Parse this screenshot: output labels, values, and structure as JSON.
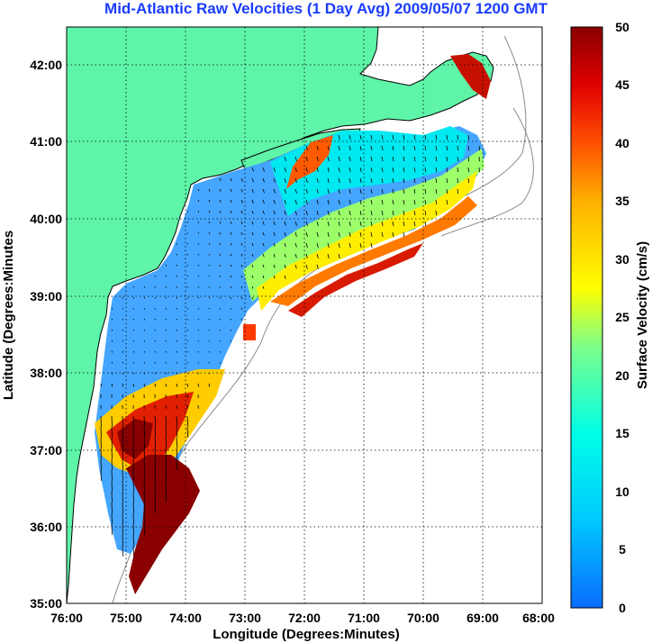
{
  "title": "Mid-Atlantic Raw Velocities (1 Day Avg) 2009/05/07 1200 GMT",
  "axes": {
    "xlabel": "Longitude (Degrees:Minutes)",
    "ylabel": "Latitude (Degrees:Minutes",
    "xticks": [
      "76:00",
      "75:00",
      "74:00",
      "73:00",
      "72:00",
      "71:00",
      "70:00",
      "69:00",
      "68:00"
    ],
    "yticks": [
      "42:00",
      "41:00",
      "40:00",
      "39:00",
      "38:00",
      "37:00",
      "36:00",
      "35:00"
    ]
  },
  "colorbar": {
    "label": "Surface Velocity (cm/s)",
    "ticks": [
      "50",
      "45",
      "40",
      "35",
      "30",
      "25",
      "20",
      "15",
      "10",
      "5",
      "0"
    ],
    "min": 0,
    "max": 50,
    "colors": [
      "#0a6cff",
      "#00c8ff",
      "#00ffe6",
      "#7dff8a",
      "#ffff00",
      "#ffb000",
      "#ff5000",
      "#e00000",
      "#8a0000"
    ]
  },
  "map": {
    "land_color": "#5ef5a8",
    "water_color": "#ffffff",
    "grid": true,
    "lon_range": [
      -76,
      -68
    ],
    "lat_range": [
      35,
      42.5
    ]
  }
}
